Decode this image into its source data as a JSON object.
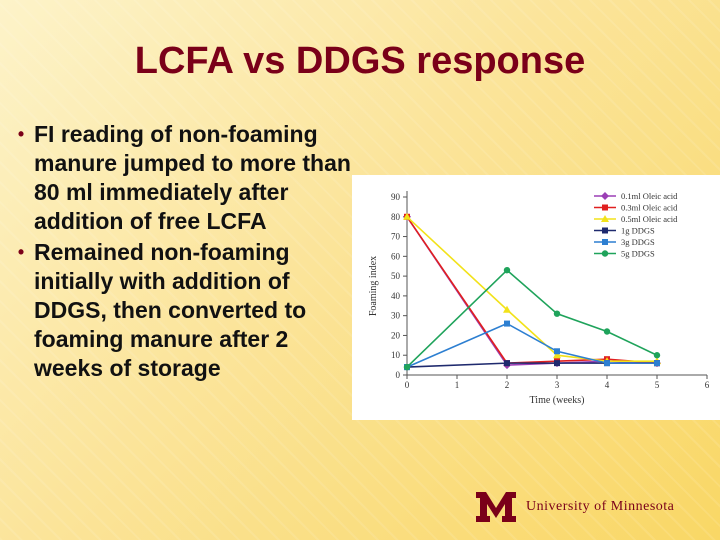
{
  "slide": {
    "title": "LCFA vs DDGS response",
    "bullets": [
      "FI reading of non-foaming manure jumped to more than 80 ml immediately after addition of free LCFA",
      "Remained non-foaming initially with addition of DDGS, then converted to foaming manure after 2 weeks of storage"
    ],
    "footer": "University of Minnesota",
    "colors": {
      "title": "#7a0019",
      "logo": "#7a0019"
    }
  },
  "chart_data": {
    "type": "line",
    "xlabel": "Time (weeks)",
    "ylabel": "Foaming index",
    "xlim": [
      0,
      6
    ],
    "ylim": [
      0,
      90
    ],
    "xticks": [
      0,
      1,
      2,
      3,
      4,
      5,
      6
    ],
    "yticks": [
      0,
      10,
      20,
      30,
      40,
      50,
      60,
      70,
      80,
      90
    ],
    "legend_position": "top-right",
    "series": [
      {
        "name": "0.1ml Oleic acid",
        "color": "#9b3fb5",
        "marker": "diamond",
        "x": [
          0,
          2,
          3,
          4,
          5
        ],
        "y": [
          80,
          5,
          6,
          7,
          6
        ]
      },
      {
        "name": "0.3ml Oleic acid",
        "color": "#e02020",
        "marker": "square",
        "x": [
          0,
          2,
          3,
          4,
          5
        ],
        "y": [
          80,
          6,
          7,
          8,
          6
        ]
      },
      {
        "name": "0.5ml Oleic acid",
        "color": "#f2e21a",
        "marker": "triangle",
        "x": [
          0,
          2,
          3,
          4,
          5
        ],
        "y": [
          80,
          33,
          10,
          7,
          7
        ]
      },
      {
        "name": "1g DDGS",
        "color": "#1f2a6e",
        "marker": "square",
        "x": [
          0,
          2,
          3,
          4,
          5
        ],
        "y": [
          4,
          6,
          6,
          6,
          6
        ]
      },
      {
        "name": "3g DDGS",
        "color": "#2d7fd1",
        "marker": "square",
        "x": [
          0,
          2,
          3,
          4,
          5
        ],
        "y": [
          4,
          26,
          12,
          6,
          6
        ]
      },
      {
        "name": "5g DDGS",
        "color": "#1fa35b",
        "marker": "circle",
        "x": [
          0,
          2,
          3,
          4,
          5
        ],
        "y": [
          4,
          53,
          31,
          22,
          10
        ]
      }
    ]
  }
}
